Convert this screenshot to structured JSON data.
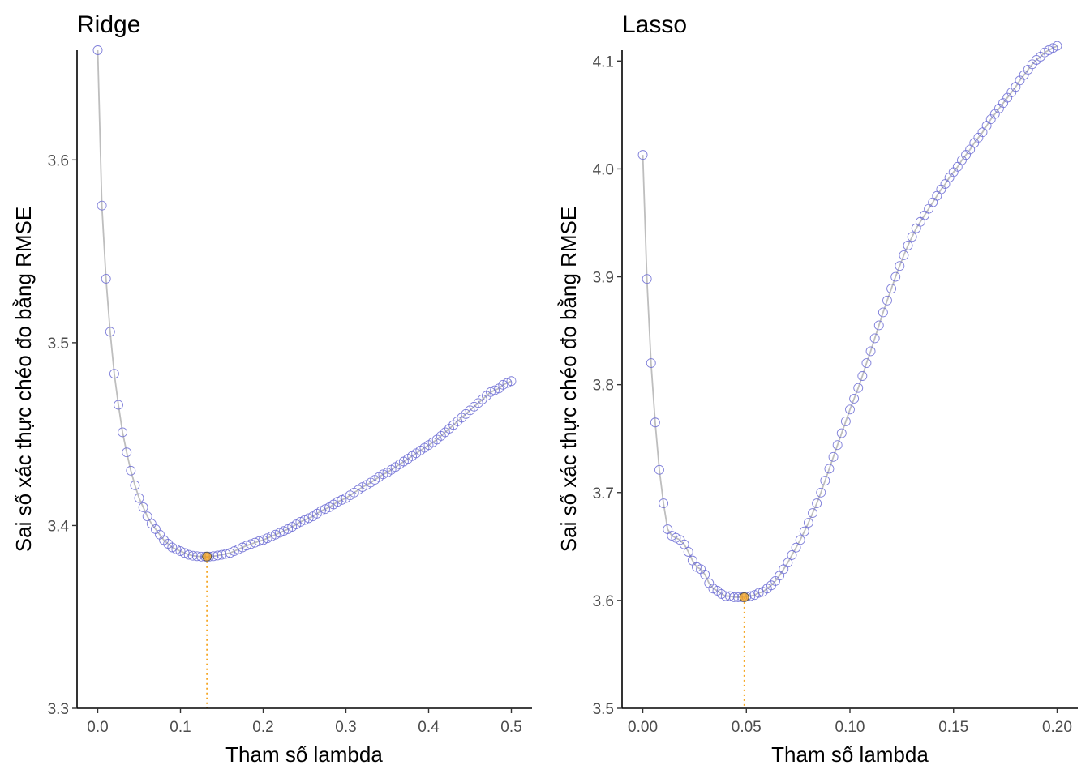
{
  "chart_data": [
    {
      "type": "scatter",
      "title": "Ridge",
      "xlabel": "Tham số lambda",
      "ylabel": "Sai số xác thực chéo đo bằng RMSE",
      "xlim": [
        -0.025,
        0.525
      ],
      "ylim": [
        3.3,
        3.66
      ],
      "xticks": [
        0.0,
        0.1,
        0.2,
        0.3,
        0.4,
        0.5
      ],
      "xtick_labels": [
        "0.0",
        "0.1",
        "0.2",
        "0.3",
        "0.4",
        "0.5"
      ],
      "yticks": [
        3.3,
        3.4,
        3.5,
        3.6
      ],
      "ytick_labels": [
        "3.3",
        "3.4",
        "3.5",
        "3.6"
      ],
      "grid": false,
      "legend": "none",
      "line_color": "#bebebe",
      "point_color": "#6a6ad4",
      "highlight_color": "#f5a623",
      "best": {
        "x": 0.132,
        "y": 3.383
      },
      "series": [
        {
          "x": [
            0.0,
            0.005,
            0.01,
            0.015,
            0.02,
            0.025,
            0.03,
            0.035,
            0.04,
            0.045,
            0.05,
            0.055,
            0.06,
            0.065,
            0.07,
            0.075,
            0.08,
            0.085,
            0.09,
            0.095,
            0.1,
            0.105,
            0.11,
            0.115,
            0.12,
            0.125,
            0.13,
            0.135,
            0.14,
            0.145,
            0.15,
            0.155,
            0.16,
            0.165,
            0.17,
            0.175,
            0.18,
            0.185,
            0.19,
            0.195,
            0.2,
            0.205,
            0.21,
            0.215,
            0.22,
            0.225,
            0.23,
            0.235,
            0.24,
            0.245,
            0.25,
            0.255,
            0.26,
            0.265,
            0.27,
            0.275,
            0.28,
            0.285,
            0.29,
            0.295,
            0.3,
            0.305,
            0.31,
            0.315,
            0.32,
            0.325,
            0.33,
            0.335,
            0.34,
            0.345,
            0.35,
            0.355,
            0.36,
            0.365,
            0.37,
            0.375,
            0.38,
            0.385,
            0.39,
            0.395,
            0.4,
            0.405,
            0.41,
            0.415,
            0.42,
            0.425,
            0.43,
            0.435,
            0.44,
            0.445,
            0.45,
            0.455,
            0.46,
            0.465,
            0.47,
            0.475,
            0.48,
            0.485,
            0.49,
            0.495,
            0.5
          ],
          "y": [
            3.66,
            3.575,
            3.535,
            3.506,
            3.483,
            3.466,
            3.451,
            3.44,
            3.43,
            3.422,
            3.415,
            3.41,
            3.405,
            3.401,
            3.398,
            3.395,
            3.392,
            3.39,
            3.388,
            3.387,
            3.386,
            3.385,
            3.384,
            3.3835,
            3.3832,
            3.383,
            3.383,
            3.383,
            3.3832,
            3.3836,
            3.384,
            3.3845,
            3.385,
            3.386,
            3.387,
            3.388,
            3.389,
            3.3898,
            3.3906,
            3.3914,
            3.392,
            3.393,
            3.394,
            3.395,
            3.396,
            3.397,
            3.398,
            3.3993,
            3.4006,
            3.402,
            3.403,
            3.404,
            3.405,
            3.4065,
            3.408,
            3.409,
            3.41,
            3.4115,
            3.413,
            3.414,
            3.415,
            3.4165,
            3.418,
            3.4195,
            3.421,
            3.4222,
            3.4235,
            3.425,
            3.4265,
            3.428,
            3.429,
            3.4305,
            3.432,
            3.4335,
            3.435,
            3.4365,
            3.438,
            3.4395,
            3.441,
            3.4425,
            3.444,
            3.4455,
            3.447,
            3.449,
            3.451,
            3.453,
            3.455,
            3.457,
            3.459,
            3.461,
            3.463,
            3.465,
            3.467,
            3.469,
            3.471,
            3.473,
            3.474,
            3.475,
            3.477,
            3.478,
            3.479
          ]
        }
      ]
    },
    {
      "type": "scatter",
      "title": "Lasso",
      "xlabel": "Tham số lambda",
      "ylabel": "Sai số xác thực chéo đo bằng RMSE",
      "xlim": [
        -0.01,
        0.21
      ],
      "ylim": [
        3.5,
        4.11
      ],
      "xticks": [
        0.0,
        0.05,
        0.1,
        0.15,
        0.2
      ],
      "xtick_labels": [
        "0.00",
        "0.05",
        "0.10",
        "0.15",
        "0.20"
      ],
      "yticks": [
        3.5,
        3.6,
        3.7,
        3.8,
        3.9,
        4.0,
        4.1
      ],
      "ytick_labels": [
        "3.5",
        "3.6",
        "3.7",
        "3.8",
        "3.9",
        "4.0",
        "4.1"
      ],
      "grid": false,
      "legend": "none",
      "line_color": "#bebebe",
      "point_color": "#6a6ad4",
      "highlight_color": "#f5a623",
      "best": {
        "x": 0.049,
        "y": 3.603
      },
      "series": [
        {
          "x": [
            0.0,
            0.002,
            0.004,
            0.006,
            0.008,
            0.01,
            0.012,
            0.014,
            0.016,
            0.018,
            0.02,
            0.022,
            0.024,
            0.026,
            0.028,
            0.03,
            0.032,
            0.034,
            0.036,
            0.038,
            0.04,
            0.042,
            0.044,
            0.046,
            0.048,
            0.05,
            0.052,
            0.054,
            0.056,
            0.058,
            0.06,
            0.062,
            0.064,
            0.066,
            0.068,
            0.07,
            0.072,
            0.074,
            0.076,
            0.078,
            0.08,
            0.082,
            0.084,
            0.086,
            0.088,
            0.09,
            0.092,
            0.094,
            0.096,
            0.098,
            0.1,
            0.102,
            0.104,
            0.106,
            0.108,
            0.11,
            0.112,
            0.114,
            0.116,
            0.118,
            0.12,
            0.122,
            0.124,
            0.126,
            0.128,
            0.13,
            0.132,
            0.134,
            0.136,
            0.138,
            0.14,
            0.142,
            0.144,
            0.146,
            0.148,
            0.15,
            0.152,
            0.154,
            0.156,
            0.158,
            0.16,
            0.162,
            0.164,
            0.166,
            0.168,
            0.17,
            0.172,
            0.174,
            0.176,
            0.178,
            0.18,
            0.182,
            0.184,
            0.186,
            0.188,
            0.19,
            0.192,
            0.194,
            0.196,
            0.198,
            0.2
          ],
          "y": [
            4.013,
            3.898,
            3.82,
            3.765,
            3.721,
            3.69,
            3.666,
            3.66,
            3.658,
            3.656,
            3.652,
            3.645,
            3.637,
            3.631,
            3.629,
            3.624,
            3.616,
            3.611,
            3.609,
            3.606,
            3.604,
            3.604,
            3.603,
            3.603,
            3.603,
            3.6035,
            3.604,
            3.605,
            3.607,
            3.608,
            3.611,
            3.614,
            3.618,
            3.623,
            3.629,
            3.635,
            3.642,
            3.649,
            3.656,
            3.664,
            3.672,
            3.681,
            3.69,
            3.7,
            3.711,
            3.722,
            3.733,
            3.744,
            3.755,
            3.766,
            3.777,
            3.787,
            3.797,
            3.808,
            3.82,
            3.831,
            3.843,
            3.855,
            3.867,
            3.878,
            3.889,
            3.9,
            3.91,
            3.92,
            3.929,
            3.937,
            3.945,
            3.951,
            3.957,
            3.963,
            3.969,
            3.975,
            3.981,
            3.986,
            3.992,
            3.997,
            4.002,
            4.008,
            4.013,
            4.018,
            4.024,
            4.029,
            4.034,
            4.04,
            4.046,
            4.051,
            4.056,
            4.061,
            4.066,
            4.071,
            4.076,
            4.082,
            4.087,
            4.092,
            4.097,
            4.101,
            4.104,
            4.108,
            4.11,
            4.112,
            4.114
          ]
        }
      ]
    }
  ]
}
